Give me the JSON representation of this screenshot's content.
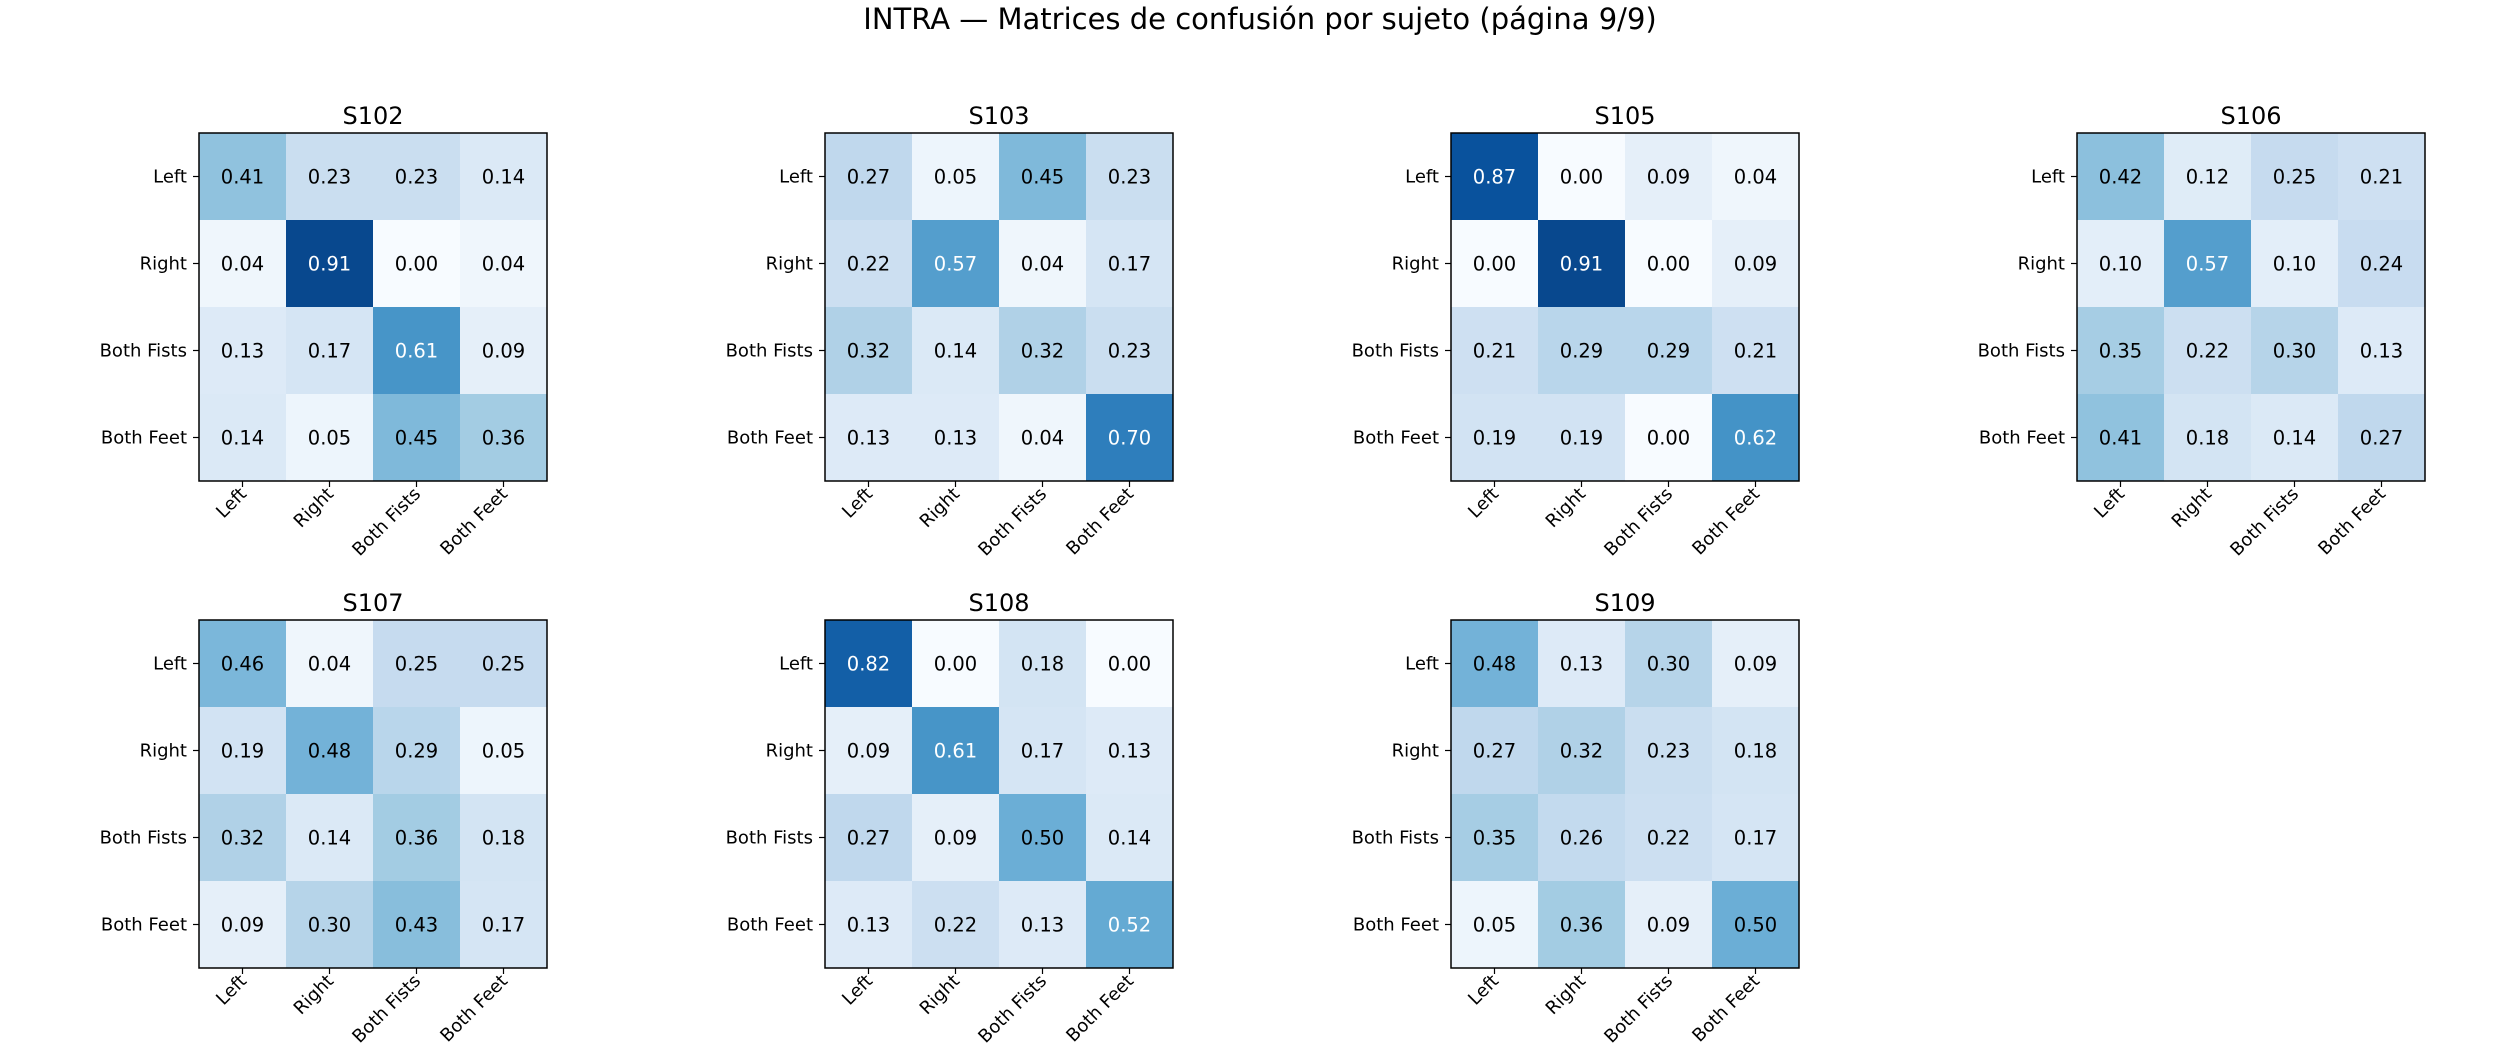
{
  "chart_data": {
    "type": "heatmap",
    "title": "INTRA — Matrices de confusión por sujeto (página 9/9)",
    "labels": [
      "Left",
      "Right",
      "Both Fists",
      "Both Feet"
    ],
    "colormap": "Blues",
    "vmin": 0,
    "vmax": 1,
    "subplots": [
      {
        "name": "S102",
        "matrix": [
          [
            0.41,
            0.23,
            0.23,
            0.14
          ],
          [
            0.04,
            0.91,
            0.0,
            0.04
          ],
          [
            0.13,
            0.17,
            0.61,
            0.09
          ],
          [
            0.14,
            0.05,
            0.45,
            0.36
          ]
        ]
      },
      {
        "name": "S103",
        "matrix": [
          [
            0.27,
            0.05,
            0.45,
            0.23
          ],
          [
            0.22,
            0.57,
            0.04,
            0.17
          ],
          [
            0.32,
            0.14,
            0.32,
            0.23
          ],
          [
            0.13,
            0.13,
            0.04,
            0.7
          ]
        ]
      },
      {
        "name": "S105",
        "matrix": [
          [
            0.87,
            0.0,
            0.09,
            0.04
          ],
          [
            0.0,
            0.91,
            0.0,
            0.09
          ],
          [
            0.21,
            0.29,
            0.29,
            0.21
          ],
          [
            0.19,
            0.19,
            0.0,
            0.62
          ]
        ]
      },
      {
        "name": "S106",
        "matrix": [
          [
            0.42,
            0.12,
            0.25,
            0.21
          ],
          [
            0.1,
            0.57,
            0.1,
            0.24
          ],
          [
            0.35,
            0.22,
            0.3,
            0.13
          ],
          [
            0.41,
            0.18,
            0.14,
            0.27
          ]
        ]
      },
      {
        "name": "S107",
        "matrix": [
          [
            0.46,
            0.04,
            0.25,
            0.25
          ],
          [
            0.19,
            0.48,
            0.29,
            0.05
          ],
          [
            0.32,
            0.14,
            0.36,
            0.18
          ],
          [
            0.09,
            0.3,
            0.43,
            0.17
          ]
        ]
      },
      {
        "name": "S108",
        "matrix": [
          [
            0.82,
            0.0,
            0.18,
            0.0
          ],
          [
            0.09,
            0.61,
            0.17,
            0.13
          ],
          [
            0.27,
            0.09,
            0.5,
            0.14
          ],
          [
            0.13,
            0.22,
            0.13,
            0.52
          ]
        ]
      },
      {
        "name": "S109",
        "matrix": [
          [
            0.48,
            0.13,
            0.3,
            0.09
          ],
          [
            0.27,
            0.32,
            0.23,
            0.18
          ],
          [
            0.35,
            0.26,
            0.22,
            0.17
          ],
          [
            0.05,
            0.36,
            0.09,
            0.5
          ]
        ]
      }
    ]
  }
}
